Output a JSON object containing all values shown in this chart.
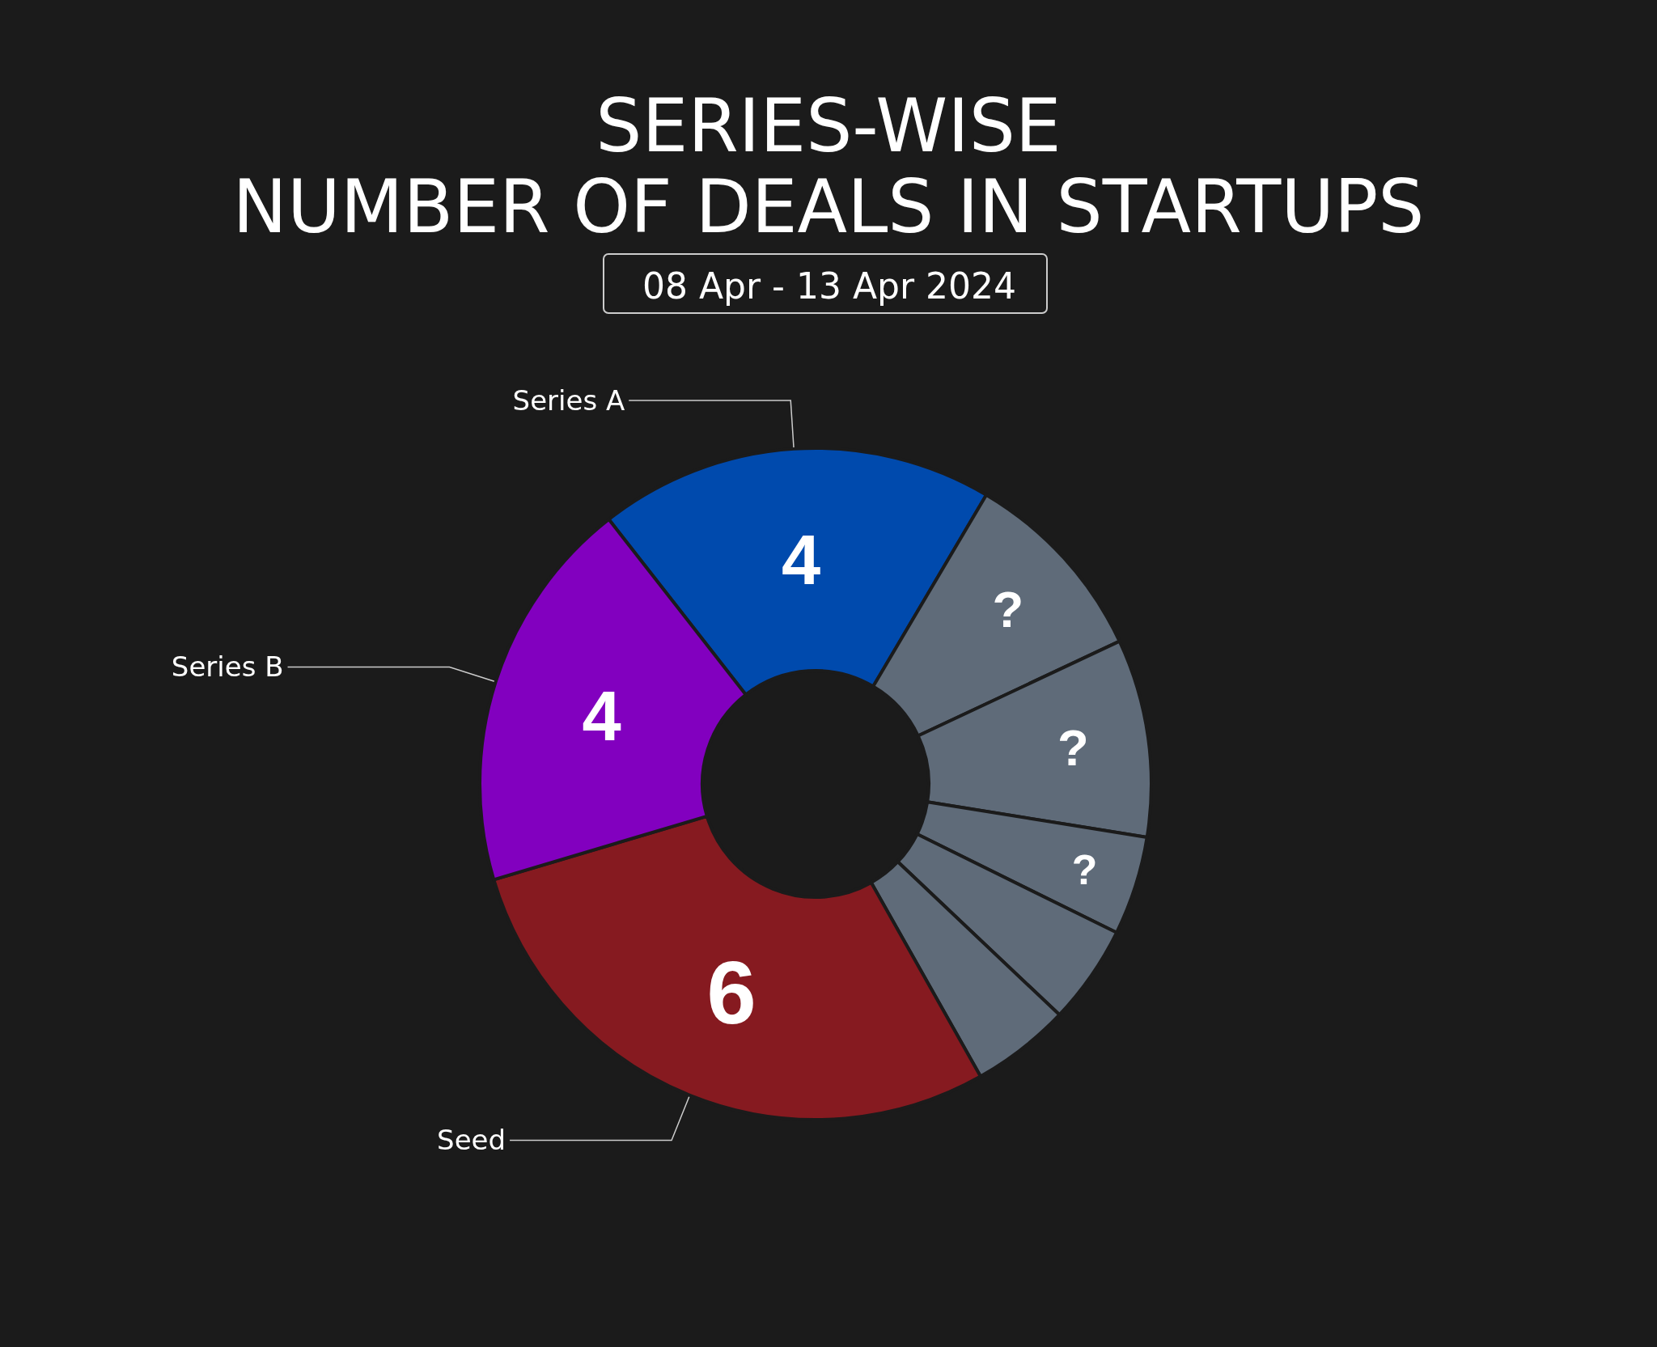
{
  "chart_data": {
    "type": "donut",
    "title": "SERIES-WISE\nNUMBER OF DEALS IN STARTUPS",
    "subtitle": "08 Apr - 13 Apr 2024",
    "categories": [
      "Series A",
      null,
      null,
      null,
      null,
      null,
      "Seed",
      "Series B"
    ],
    "values": [
      4,
      2,
      2,
      1,
      1,
      1,
      6,
      4
    ],
    "colors": [
      "#004aad",
      "#5f6b79",
      "#5f6b79",
      "#5f6b79",
      "#5f6b79",
      "#5f6b79",
      "#861a20",
      "#8200bf"
    ],
    "value_labels": [
      "4",
      "?",
      "?",
      "?",
      null,
      null,
      "6",
      "4"
    ],
    "legend": false
  }
}
